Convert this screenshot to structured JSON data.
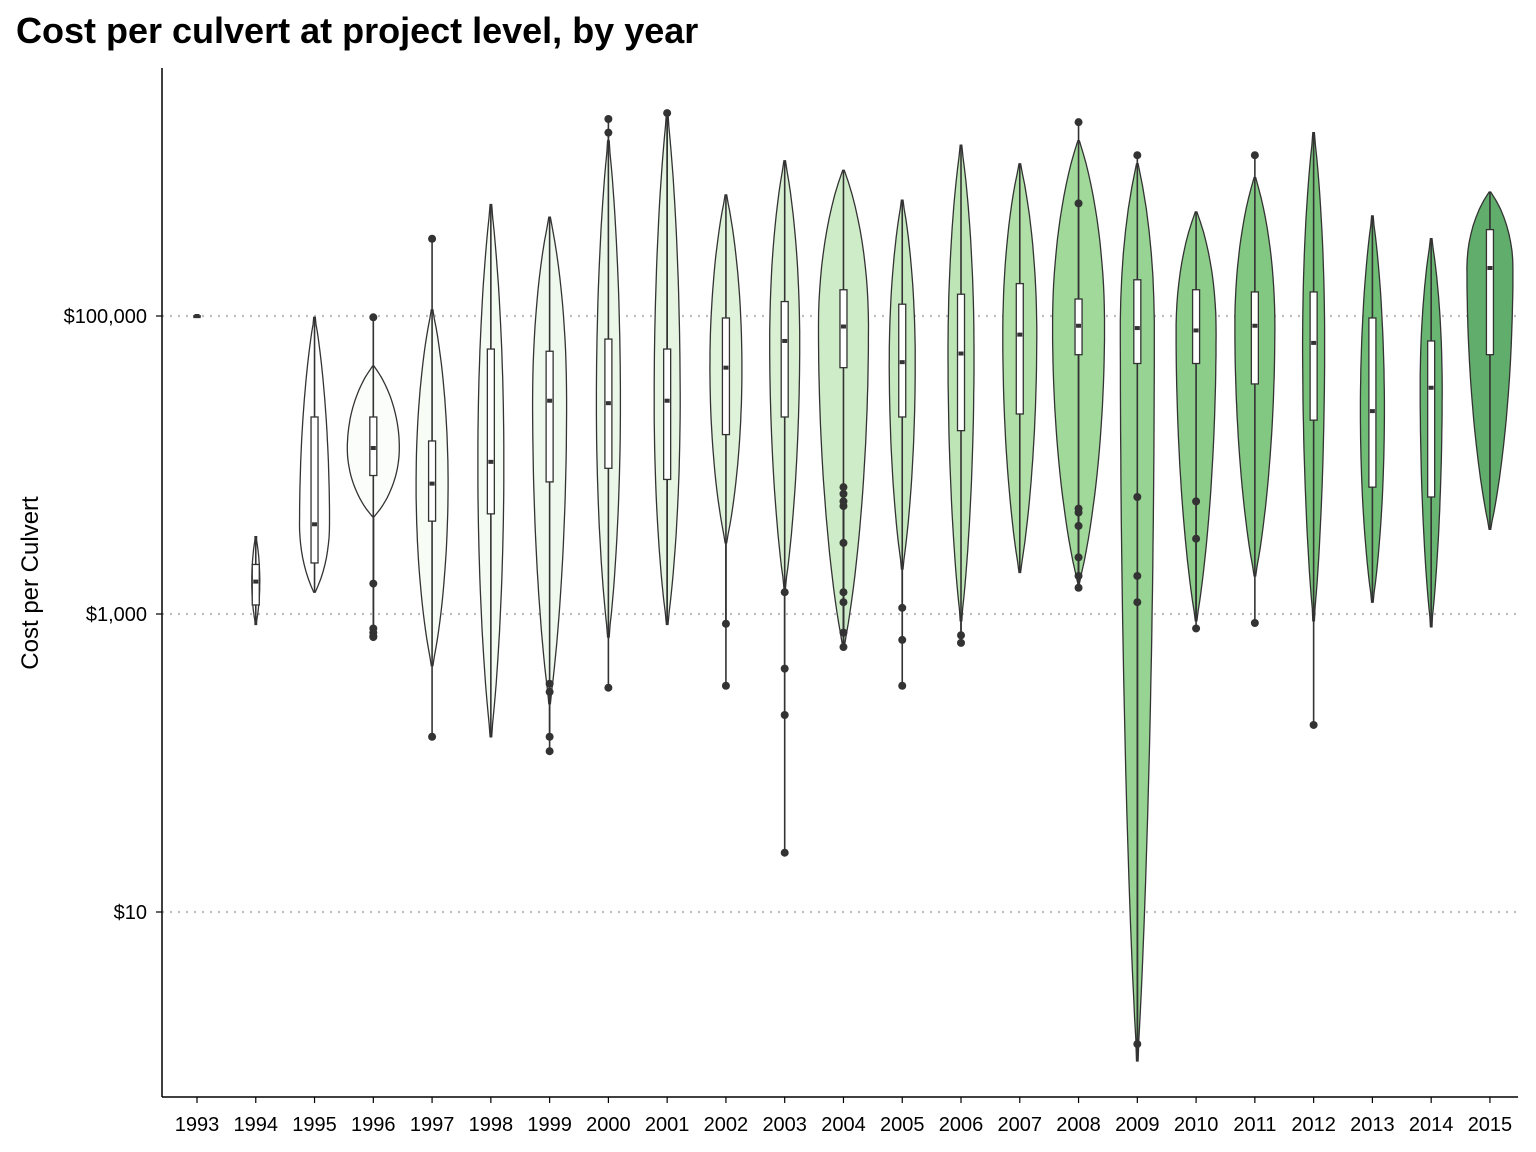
{
  "chart_data": {
    "type": "violin",
    "title": "Cost per culvert at project level, by year",
    "ylabel": "Cost per Culvert",
    "xlabel": "",
    "yscale": "log10",
    "ylim": [
      1.0,
      400000
    ],
    "yticks": [
      10,
      1000,
      100000
    ],
    "ytick_labels": [
      "$10",
      "$1,000",
      "$100,000"
    ],
    "grid": "horizontal dotted at major y ticks",
    "legend": "none",
    "fill_colors": [
      "#ffffff",
      "#ffffff",
      "#ffffff",
      "#fbfdfa",
      "#f7fcf5",
      "#f4fbf2",
      "#f0f9ee",
      "#ebf7e8",
      "#e5f5e1",
      "#dff2da",
      "#d9f0d3",
      "#cfecc8",
      "#c7e9c0",
      "#bde5b5",
      "#b0dfa8",
      "#a1d99b",
      "#97d393",
      "#8ccd8a",
      "#82c782",
      "#79c27a",
      "#70bd76",
      "#68b672",
      "#61ad6c"
    ],
    "categories": [
      "1993",
      "1994",
      "1995",
      "1996",
      "1997",
      "1998",
      "1999",
      "2000",
      "2001",
      "2002",
      "2003",
      "2004",
      "2005",
      "2006",
      "2007",
      "2008",
      "2009",
      "2010",
      "2011",
      "2012",
      "2013",
      "2014",
      "2015"
    ],
    "series": [
      {
        "year": "1993",
        "min": 100000,
        "q1": 100000,
        "median": 100000,
        "q3": 100000,
        "max": 100000,
        "half_width": 4,
        "outliers": []
      },
      {
        "year": "1994",
        "min": 850,
        "q1": 1150,
        "median": 1650,
        "q3": 2150,
        "max": 3300,
        "half_width": 4,
        "outliers": []
      },
      {
        "year": "1995",
        "min": 1400,
        "q1": 2200,
        "median": 4000,
        "q3": 21000,
        "max": 98000,
        "half_width": 15,
        "outliers": []
      },
      {
        "year": "1996",
        "min": 4500,
        "q1": 8500,
        "median": 13000,
        "q3": 21000,
        "max": 46000,
        "half_width": 26,
        "outliers": [
          1600,
          800,
          750,
          710,
          700,
          98000
        ]
      },
      {
        "year": "1997",
        "min": 450,
        "q1": 4200,
        "median": 7500,
        "q3": 14500,
        "max": 110000,
        "half_width": 16,
        "outliers": [
          150,
          330000
        ]
      },
      {
        "year": "1998",
        "min": 150,
        "q1": 4700,
        "median": 10500,
        "q3": 60000,
        "max": 560000,
        "half_width": 13,
        "outliers": []
      },
      {
        "year": "1999",
        "min": 250,
        "q1": 7700,
        "median": 27000,
        "q3": 58000,
        "max": 460000,
        "half_width": 17,
        "outliers": [
          120,
          150,
          300,
          340
        ]
      },
      {
        "year": "2000",
        "min": 700,
        "q1": 9500,
        "median": 26000,
        "q3": 70000,
        "max": 1500000,
        "half_width": 12,
        "outliers": [
          320,
          1700000,
          2100000
        ]
      },
      {
        "year": "2001",
        "min": 850,
        "q1": 8000,
        "median": 27000,
        "q3": 60000,
        "max": 2300000,
        "half_width": 13,
        "outliers": [
          2300000
        ]
      },
      {
        "year": "2002",
        "min": 3000,
        "q1": 16000,
        "median": 45000,
        "q3": 97000,
        "max": 650000,
        "half_width": 16,
        "outliers": [
          330,
          860
        ]
      },
      {
        "year": "2003",
        "min": 1500,
        "q1": 21000,
        "median": 68000,
        "q3": 125000,
        "max": 1100000,
        "half_width": 15,
        "outliers": [
          25,
          210,
          430,
          1400
        ]
      },
      {
        "year": "2004",
        "min": 600,
        "q1": 45000,
        "median": 85000,
        "q3": 150000,
        "max": 950000,
        "half_width": 25,
        "outliers": [
          600,
          750,
          1200,
          1400,
          3000,
          5300,
          5700,
          6400,
          7100
        ]
      },
      {
        "year": "2005",
        "min": 2000,
        "q1": 21000,
        "median": 49000,
        "q3": 120000,
        "max": 600000,
        "half_width": 13,
        "outliers": [
          330,
          670,
          1100
        ]
      },
      {
        "year": "2006",
        "min": 900,
        "q1": 17000,
        "median": 56000,
        "q3": 140000,
        "max": 1400000,
        "half_width": 13,
        "outliers": [
          640,
          720
        ]
      },
      {
        "year": "2007",
        "min": 1900,
        "q1": 22000,
        "median": 75000,
        "q3": 165000,
        "max": 1050000,
        "half_width": 17,
        "outliers": []
      },
      {
        "year": "2008",
        "min": 1600,
        "q1": 55000,
        "median": 86000,
        "q3": 130000,
        "max": 1500000,
        "half_width": 26,
        "outliers": [
          1500,
          1800,
          2400,
          3900,
          4800,
          5100,
          570000,
          2000000
        ]
      },
      {
        "year": "2009",
        "min": 1.0,
        "q1": 48000,
        "median": 83000,
        "q3": 175000,
        "max": 1050000,
        "half_width": 17,
        "outliers": [
          1.3,
          1200,
          1800,
          6100,
          1200000
        ]
      },
      {
        "year": "2010",
        "min": 900,
        "q1": 48000,
        "median": 80000,
        "q3": 150000,
        "max": 500000,
        "half_width": 20,
        "outliers": [
          800,
          3200,
          5700
        ]
      },
      {
        "year": "2011",
        "min": 1800,
        "q1": 35000,
        "median": 86000,
        "q3": 145000,
        "max": 850000,
        "half_width": 20,
        "outliers": [
          870,
          1200000
        ]
      },
      {
        "year": "2012",
        "min": 900,
        "q1": 20000,
        "median": 66000,
        "q3": 145000,
        "max": 1700000,
        "half_width": 11,
        "outliers": [
          180
        ]
      },
      {
        "year": "2013",
        "min": 1200,
        "q1": 7100,
        "median": 23000,
        "q3": 97000,
        "max": 470000,
        "half_width": 12,
        "outliers": []
      },
      {
        "year": "2014",
        "min": 820,
        "q1": 6100,
        "median": 33000,
        "q3": 68000,
        "max": 330000,
        "half_width": 11,
        "outliers": []
      },
      {
        "year": "2015",
        "min": 3700,
        "q1": 55000,
        "median": 210000,
        "q3": 380000,
        "max": 680000,
        "half_width": 23,
        "outliers": []
      }
    ]
  }
}
